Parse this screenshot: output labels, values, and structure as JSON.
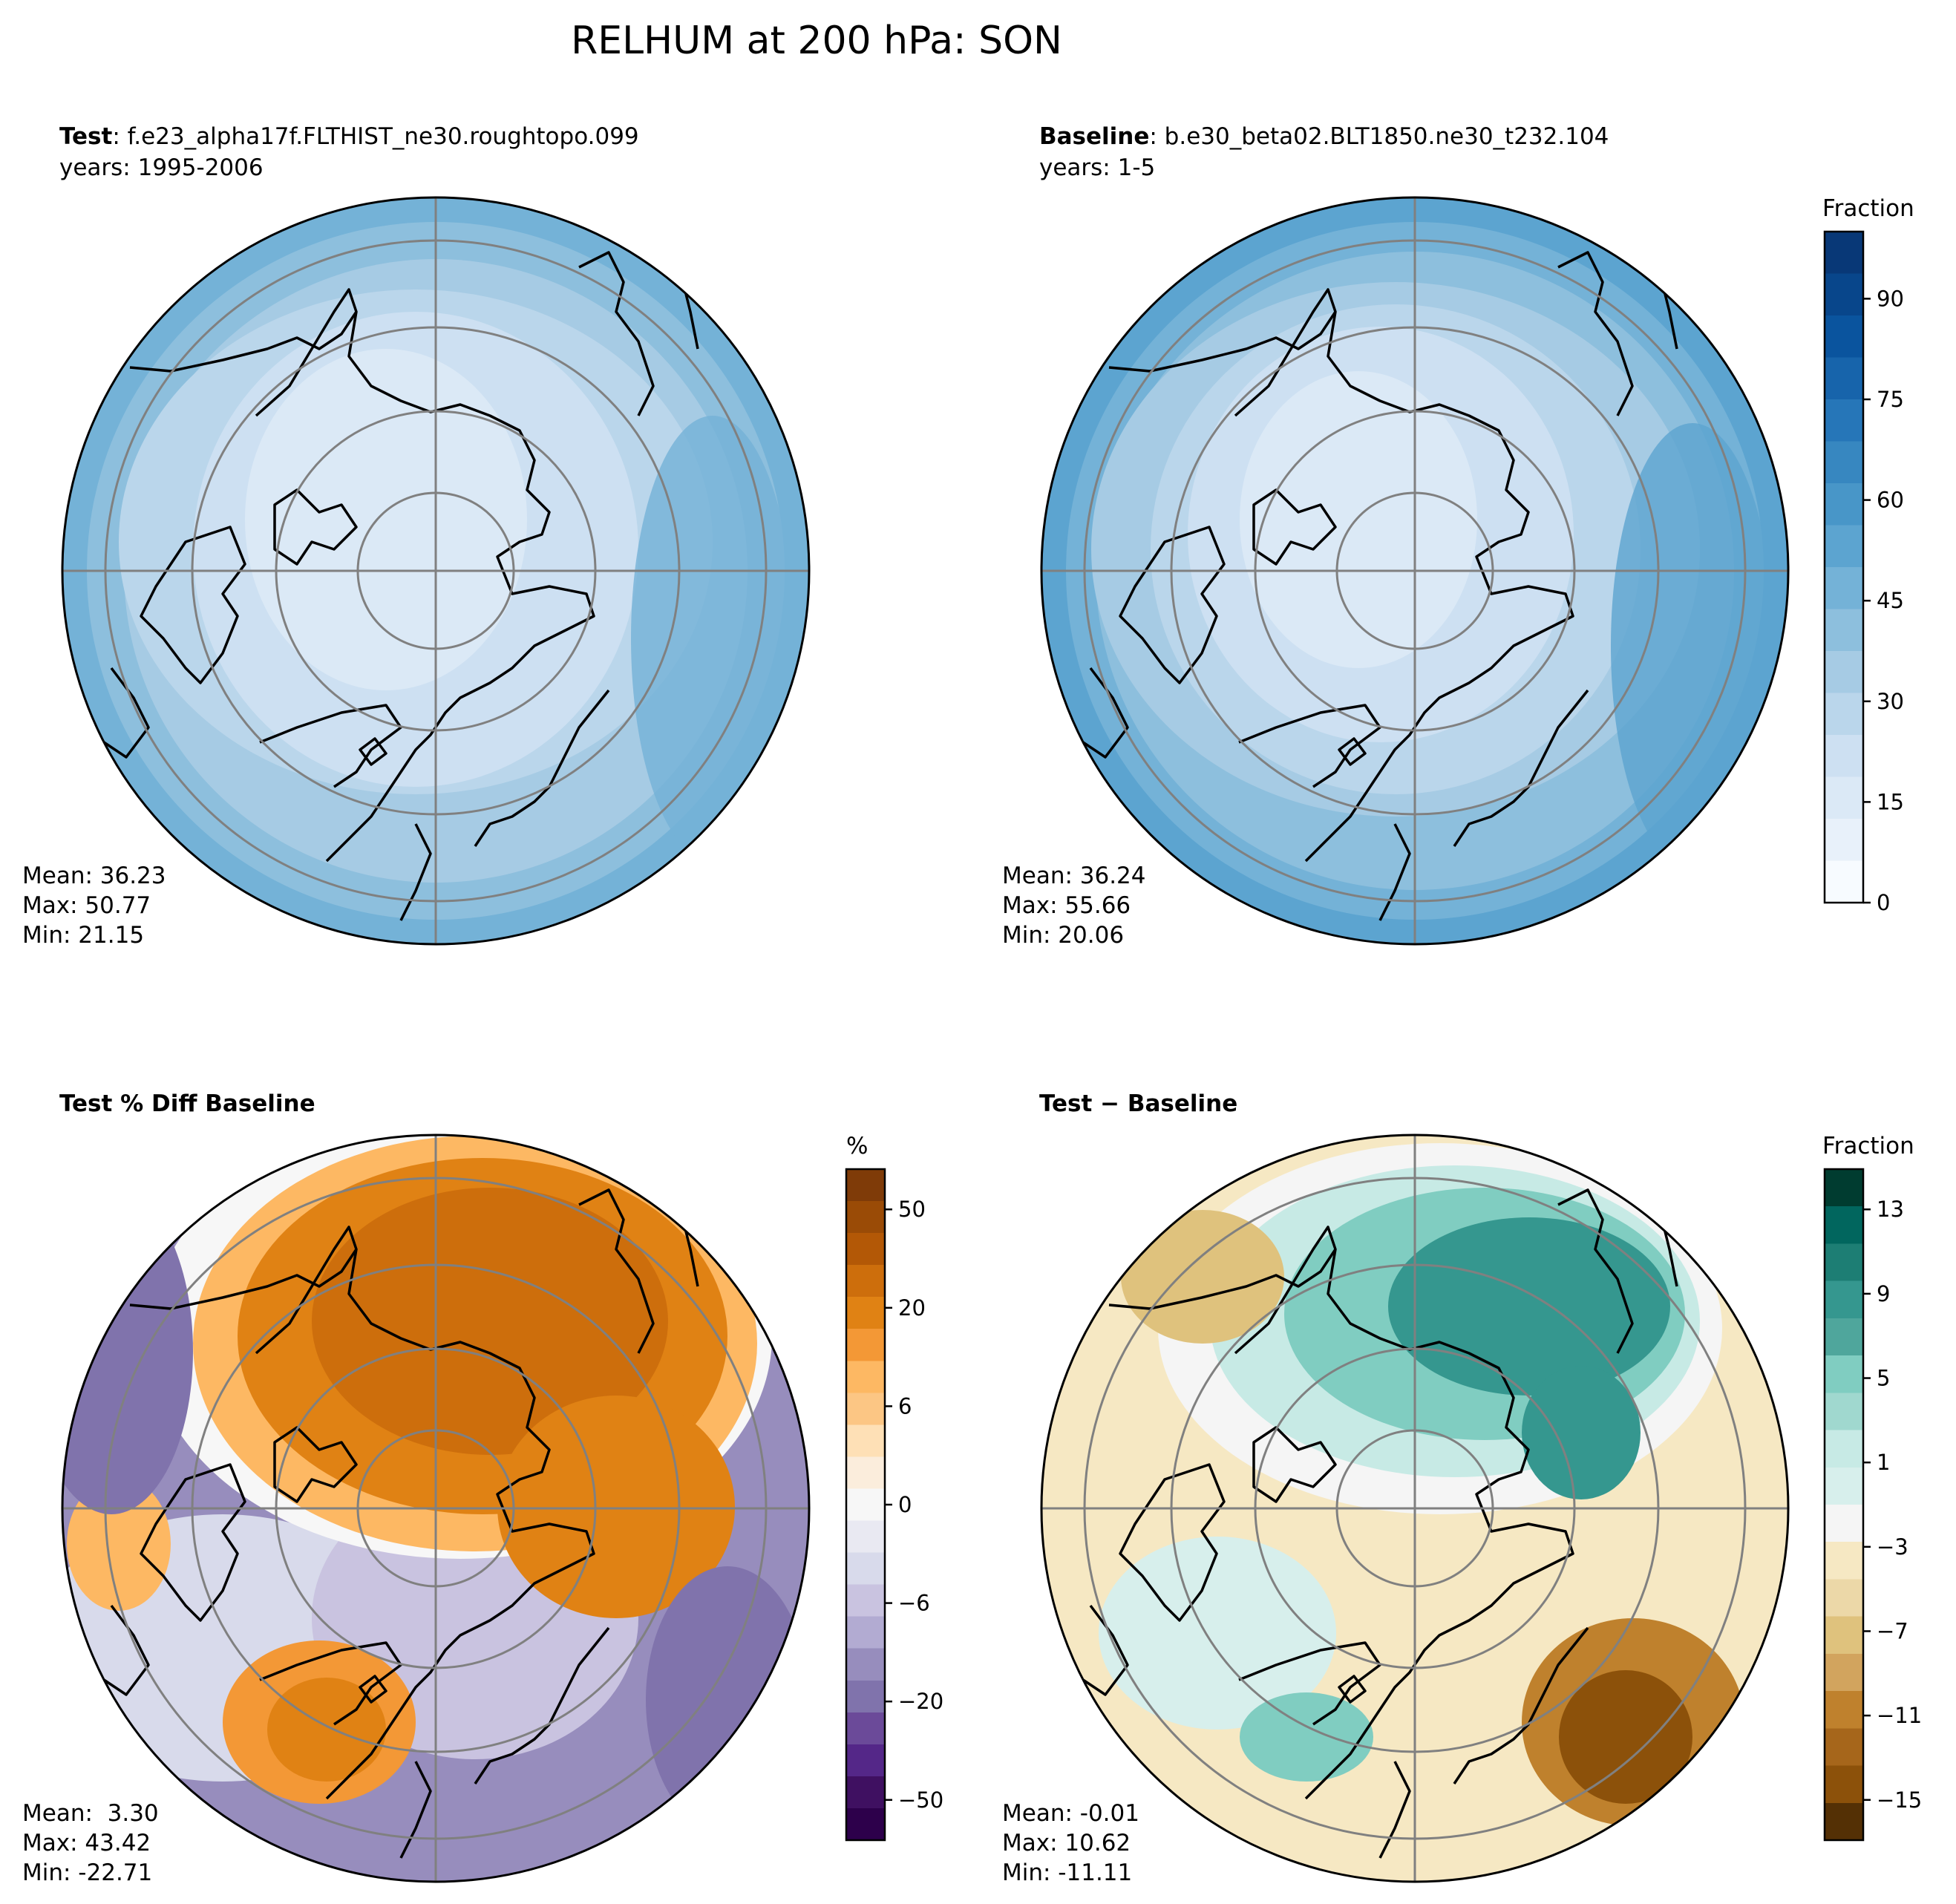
{
  "figure": {
    "title": "RELHUM at 200 hPa: SON",
    "background": "#ffffff"
  },
  "panels": [
    {
      "id": "test",
      "title_bold": "Test",
      "title_rest": ": f.e23_alpha17f.FLTHIST_ne30.roughtopo.099",
      "years": "years: 1995-2006",
      "stats": {
        "mean": "Mean: 36.23",
        "max": "Max: 50.77",
        "min": "Min: 21.15"
      },
      "palette": "blues",
      "colorbar": false
    },
    {
      "id": "baseline",
      "title_bold": "Baseline",
      "title_rest": ": b.e30_beta02.BLT1850.ne30_t232.104",
      "years": "years: 1-5",
      "stats": {
        "mean": "Mean: 36.24",
        "max": "Max: 55.66",
        "min": "Min: 20.06"
      },
      "palette": "blues",
      "colorbar": true,
      "colorbar_label": "Fraction",
      "colorbar_ticks": [
        "0",
        "15",
        "30",
        "45",
        "60",
        "75",
        "90"
      ],
      "colorbar_colors": [
        "#f7fbff",
        "#e8f1fa",
        "#dbe9f6",
        "#cde0f2",
        "#bad6eb",
        "#a6cbe4",
        "#8dbfdd",
        "#74b2d7",
        "#5ca4d0",
        "#4896c8",
        "#3787c0",
        "#2676b8",
        "#1764ab",
        "#0a549e",
        "#08468b",
        "#083877"
      ]
    },
    {
      "id": "pctdiff",
      "title_bold": "Test % Diff Baseline",
      "title_rest": "",
      "years": "",
      "stats": {
        "mean": "Mean:  3.30",
        "max": "Max: 43.42",
        "min": "Min: -22.71"
      },
      "palette": "puor",
      "colorbar": true,
      "colorbar_label": "%",
      "colorbar_ticks": [
        "−50",
        "−20",
        "−6",
        "0",
        "6",
        "20",
        "50"
      ],
      "colorbar_colors": [
        "#2d004b",
        "#3f1061",
        "#542788",
        "#6b4a99",
        "#8073ac",
        "#978dbd",
        "#b2abd2",
        "#c9c3e0",
        "#d8daeb",
        "#e9e9f2",
        "#f7f7f7",
        "#fbeddc",
        "#fee0b6",
        "#fcc684",
        "#fdb863",
        "#f39836",
        "#e08214",
        "#cd6e0c",
        "#b35806",
        "#9a4b06",
        "#7f3b08"
      ]
    },
    {
      "id": "absdiff",
      "title_bold": "Test",
      "title_rest": " − Baseline",
      "title_rest_bold": true,
      "years": "",
      "stats": {
        "mean": "Mean: -0.01",
        "max": "Max: 10.62",
        "min": "Min: -11.11"
      },
      "palette": "brbg",
      "colorbar": true,
      "colorbar_label": "Fraction",
      "colorbar_ticks": [
        "−15",
        "−11",
        "−7",
        "−3",
        "1",
        "5",
        "9",
        "13"
      ],
      "colorbar_colors": [
        "#543005",
        "#8c510a",
        "#a6661b",
        "#bf812d",
        "#d2a45e",
        "#dfc27d",
        "#ecd8a8",
        "#f6e8c3",
        "#f5f5f5",
        "#d7efec",
        "#c7eae5",
        "#a0d8cf",
        "#80cdc1",
        "#4fa69c",
        "#35978f",
        "#1d7e74",
        "#01665e",
        "#003c30"
      ]
    }
  ]
}
